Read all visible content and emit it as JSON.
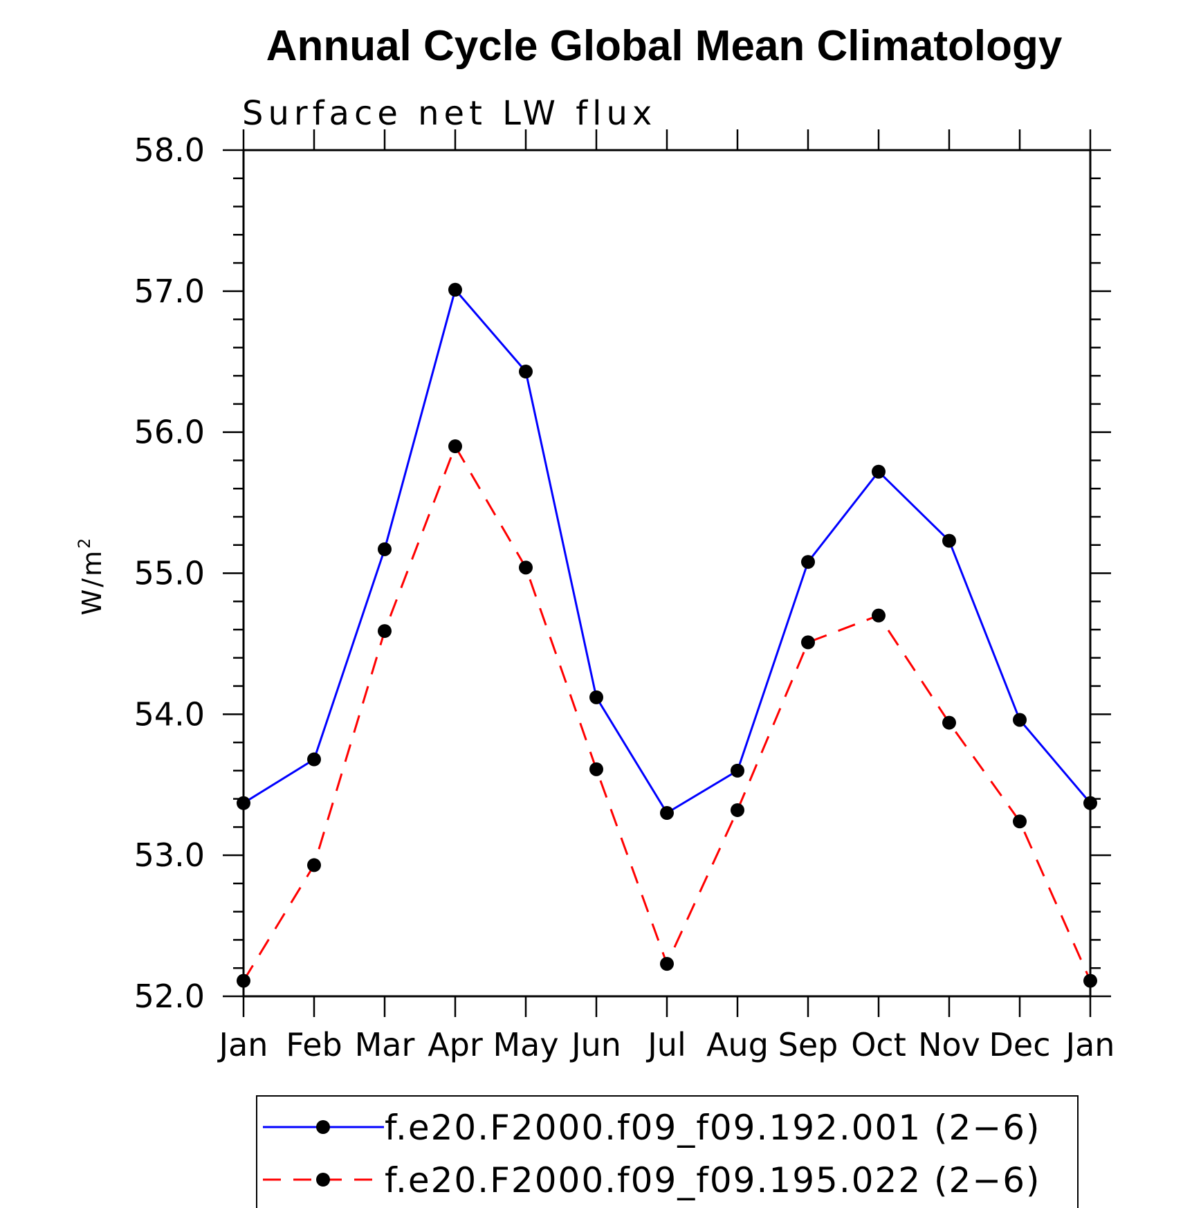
{
  "chart_data": {
    "type": "line",
    "title": "Annual Cycle Global Mean Climatology",
    "subtitle": "Surface net LW flux",
    "ylabel": "W/m",
    "ylabel_sup": "2",
    "xlabel": "",
    "categories": [
      "Jan",
      "Feb",
      "Mar",
      "Apr",
      "May",
      "Jun",
      "Jul",
      "Aug",
      "Sep",
      "Oct",
      "Nov",
      "Dec",
      "Jan"
    ],
    "ylim": [
      52.0,
      58.0
    ],
    "yticks": [
      "52.0",
      "53.0",
      "54.0",
      "55.0",
      "56.0",
      "57.0",
      "58.0"
    ],
    "series": [
      {
        "name": "f.e20.F2000.f09_f09.192.001 (2−6)",
        "color": "#0000ff",
        "dash": "solid",
        "values": [
          53.37,
          53.68,
          55.17,
          57.01,
          56.43,
          54.12,
          53.3,
          53.6,
          55.08,
          55.72,
          55.23,
          53.96,
          53.37
        ]
      },
      {
        "name": "f.e20.F2000.f09_f09.195.022 (2−6)",
        "color": "#ff0000",
        "dash": "dashed",
        "values": [
          52.11,
          52.93,
          54.59,
          55.9,
          55.04,
          53.61,
          52.23,
          53.32,
          54.51,
          54.7,
          53.94,
          53.24,
          52.11
        ]
      }
    ],
    "legend_position": "bottom"
  }
}
